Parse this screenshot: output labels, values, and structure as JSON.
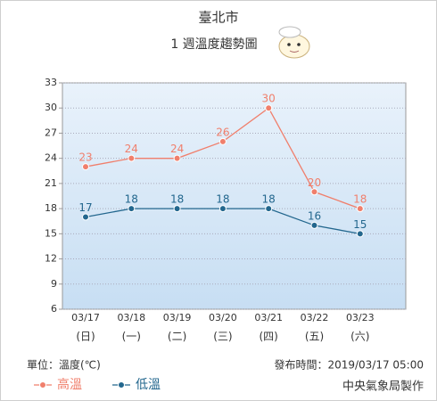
{
  "chart_data": {
    "type": "line",
    "title": "臺北市",
    "subtitle": "1 週溫度趨勢圖",
    "categories": [
      "03/17",
      "03/18",
      "03/19",
      "03/20",
      "03/21",
      "03/22",
      "03/23"
    ],
    "weekdays": [
      "(日)",
      "(一)",
      "(二)",
      "(三)",
      "(四)",
      "(五)",
      "(六)"
    ],
    "series": [
      {
        "name": "高溫",
        "color": "#f07f6c",
        "values": [
          23,
          24,
          24,
          26,
          30,
          20,
          18
        ]
      },
      {
        "name": "低溫",
        "color": "#23678e",
        "values": [
          17,
          18,
          18,
          18,
          18,
          16,
          15
        ]
      }
    ],
    "ylim": [
      6,
      33
    ],
    "yticks": [
      6,
      9,
      12,
      15,
      18,
      21,
      24,
      27,
      30,
      33
    ],
    "grid": true,
    "unit": "單位：溫度(℃)",
    "issued": "發布時間：2019/03/17 05:00",
    "credit": "中央氣象局製作"
  }
}
